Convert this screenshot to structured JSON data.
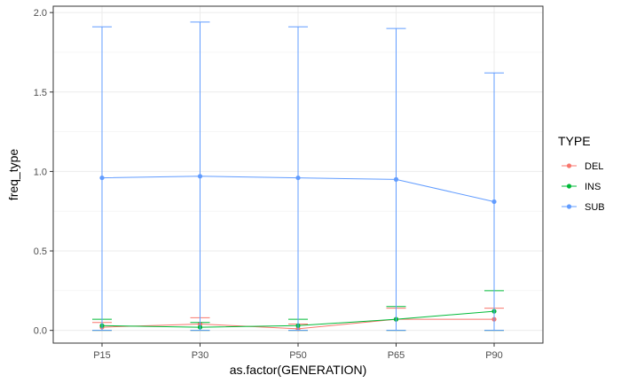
{
  "chart_data": {
    "type": "line",
    "title": "",
    "xlabel": "as.factor(GENERATION)",
    "ylabel": "freq_type",
    "categories": [
      "P15",
      "P30",
      "P50",
      "P65",
      "P90"
    ],
    "ylim": [
      -0.08,
      2.04
    ],
    "yticks": [
      0.0,
      0.5,
      1.0,
      1.5,
      2.0
    ],
    "ytick_labels": [
      "0.0",
      "0.5",
      "1.0",
      "1.5",
      "2.0"
    ],
    "grid": true,
    "legend": {
      "title": "TYPE",
      "placement": "right"
    },
    "error_bars": true,
    "series": [
      {
        "name": "DEL",
        "color": "#F8766D",
        "values": [
          0.02,
          0.04,
          0.01,
          0.07,
          0.07
        ],
        "lower": [
          0.0,
          0.0,
          0.0,
          0.0,
          0.0
        ],
        "upper": [
          0.05,
          0.08,
          0.04,
          0.14,
          0.14
        ]
      },
      {
        "name": "INS",
        "color": "#00BA38",
        "values": [
          0.03,
          0.02,
          0.03,
          0.07,
          0.12
        ],
        "lower": [
          0.0,
          0.0,
          0.0,
          0.0,
          0.0
        ],
        "upper": [
          0.07,
          0.05,
          0.07,
          0.15,
          0.25
        ]
      },
      {
        "name": "SUB",
        "color": "#619CFF",
        "values": [
          0.96,
          0.97,
          0.96,
          0.95,
          0.81
        ],
        "lower": [
          0.0,
          0.0,
          0.0,
          0.0,
          0.0
        ],
        "upper": [
          1.91,
          1.94,
          1.91,
          1.9,
          1.62
        ]
      }
    ]
  }
}
